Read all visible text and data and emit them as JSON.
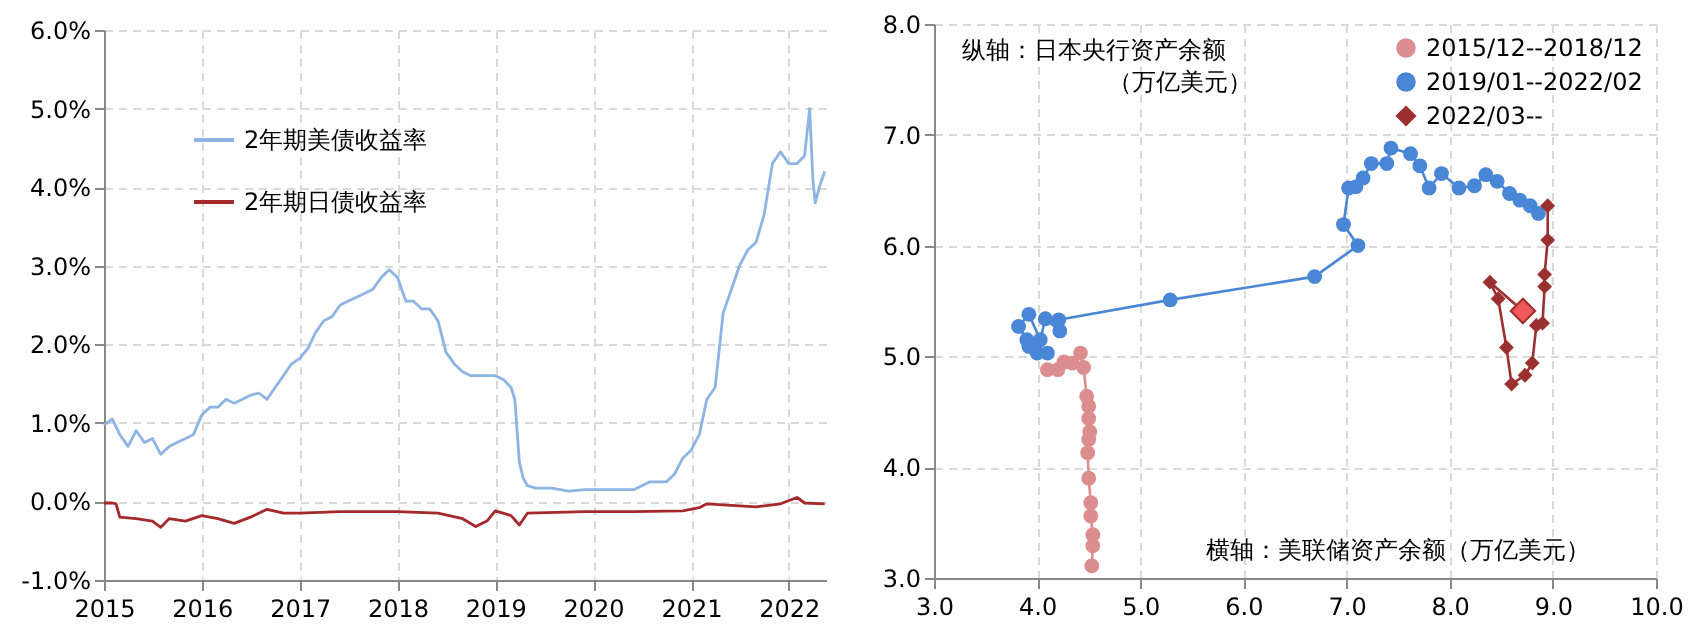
{
  "chart_data": [
    {
      "type": "line",
      "xlim": [
        "2015-01-01",
        "2022-05-20"
      ],
      "xticks": [
        "2015",
        "2016",
        "2017",
        "2018",
        "2019",
        "2020",
        "2021",
        "2022"
      ],
      "ylim": [
        -1,
        6
      ],
      "yticks": [
        {
          "value": -1,
          "label": "-1.0%"
        },
        {
          "value": 0,
          "label": "0.0%"
        },
        {
          "value": 1,
          "label": "1.0%"
        },
        {
          "value": 2,
          "label": "2.0%"
        },
        {
          "value": 3,
          "label": "3.0%"
        },
        {
          "value": 4,
          "label": "4.0%"
        },
        {
          "value": 5,
          "label": "5.0%"
        },
        {
          "value": 6,
          "label": "6.0%"
        }
      ],
      "grid": true,
      "legend": "top left",
      "series": [
        {
          "name": "2年期美债收益率",
          "color": "#8db4e2",
          "x": [
            "2015-01-01",
            "2015-02-01",
            "2015-03-01",
            "2015-04-01",
            "2015-05-01",
            "2015-06-01",
            "2015-07-01",
            "2015-08-01",
            "2015-09-01",
            "2015-10-01",
            "2015-11-01",
            "2015-12-01",
            "2016-01-01",
            "2016-02-01",
            "2016-03-01",
            "2016-04-01",
            "2016-05-01",
            "2016-06-01",
            "2016-07-01",
            "2016-08-01",
            "2016-09-01",
            "2016-10-01",
            "2016-11-01",
            "2016-12-01",
            "2017-01-01",
            "2017-02-01",
            "2017-03-01",
            "2017-04-01",
            "2017-05-01",
            "2017-06-01",
            "2017-07-01",
            "2017-08-01",
            "2017-09-01",
            "2017-10-01",
            "2017-11-01",
            "2017-12-01",
            "2018-01-01",
            "2018-02-01",
            "2018-03-01",
            "2018-04-01",
            "2018-05-01",
            "2018-06-01",
            "2018-07-01",
            "2018-08-01",
            "2018-09-01",
            "2018-10-01",
            "2018-11-01",
            "2018-12-01",
            "2019-01-01",
            "2019-02-01",
            "2019-03-01",
            "2019-03-15",
            "2019-04-01",
            "2019-04-15",
            "2019-05-01",
            "2019-06-01",
            "2019-08-01",
            "2019-10-01",
            "2019-12-01",
            "2020-02-01",
            "2020-04-01",
            "2020-06-01",
            "2020-08-01",
            "2020-10-01",
            "2020-11-01",
            "2020-12-01",
            "2021-01-01",
            "2021-02-01",
            "2021-03-01",
            "2021-04-01",
            "2021-05-01",
            "2021-06-01",
            "2021-07-01",
            "2021-08-01",
            "2021-09-01",
            "2021-10-01",
            "2021-11-01",
            "2021-12-01",
            "2022-01-01",
            "2022-02-01",
            "2022-03-01",
            "2022-03-20",
            "2022-04-01",
            "2022-04-10",
            "2022-04-25",
            "2022-05-15"
          ],
          "values": [
            0.97,
            1.05,
            0.85,
            0.7,
            0.9,
            0.75,
            0.8,
            0.6,
            0.7,
            0.75,
            0.8,
            0.85,
            1.1,
            1.2,
            1.2,
            1.3,
            1.25,
            1.3,
            1.35,
            1.38,
            1.3,
            1.45,
            1.6,
            1.75,
            1.82,
            1.95,
            2.15,
            2.3,
            2.35,
            2.5,
            2.55,
            2.6,
            2.65,
            2.7,
            2.85,
            2.95,
            2.85,
            2.55,
            2.55,
            2.45,
            2.45,
            2.3,
            1.9,
            1.75,
            1.65,
            1.6,
            1.6,
            1.6,
            1.6,
            1.55,
            1.45,
            1.3,
            0.5,
            0.3,
            0.2,
            0.17,
            0.17,
            0.13,
            0.15,
            0.15,
            0.15,
            0.15,
            0.25,
            0.25,
            0.35,
            0.55,
            0.65,
            0.85,
            1.3,
            1.45,
            2.4,
            2.7,
            3.0,
            3.2,
            3.3,
            3.65,
            4.3,
            4.45,
            4.3,
            4.3,
            4.4,
            5.0,
            4.1,
            3.8,
            4.0,
            4.2
          ]
        },
        {
          "name": "2年期日债收益率",
          "color": "#a5282a",
          "x": [
            "2015-01-01",
            "2015-02-01",
            "2015-02-15",
            "2015-03-01",
            "2015-05-01",
            "2015-07-01",
            "2015-08-01",
            "2015-09-01",
            "2015-11-01",
            "2016-01-01",
            "2016-03-01",
            "2016-05-01",
            "2016-07-01",
            "2016-09-01",
            "2016-11-01",
            "2017-01-01",
            "2017-06-01",
            "2018-01-01",
            "2018-06-01",
            "2018-09-01",
            "2018-10-20",
            "2018-12-01",
            "2019-01-01",
            "2019-03-01",
            "2019-04-01",
            "2019-05-01",
            "2019-12-01",
            "2020-06-01",
            "2020-12-01",
            "2021-02-01",
            "2021-03-01",
            "2021-06-01",
            "2021-09-01",
            "2021-12-01",
            "2022-02-01",
            "2022-03-01",
            "2022-05-15"
          ],
          "values": [
            -0.02,
            -0.02,
            -0.03,
            -0.2,
            -0.22,
            -0.25,
            -0.33,
            -0.22,
            -0.25,
            -0.18,
            -0.22,
            -0.28,
            -0.2,
            -0.1,
            -0.15,
            -0.15,
            -0.13,
            -0.13,
            -0.15,
            -0.22,
            -0.32,
            -0.25,
            -0.12,
            -0.18,
            -0.3,
            -0.15,
            -0.13,
            -0.13,
            -0.12,
            -0.08,
            -0.03,
            -0.05,
            -0.07,
            -0.03,
            0.05,
            -0.02,
            -0.03
          ]
        }
      ]
    },
    {
      "type": "line",
      "xlim": [
        3,
        10
      ],
      "xticks": [
        {
          "value": 3,
          "label": "3.0"
        },
        {
          "value": 4,
          "label": "4.0"
        },
        {
          "value": 5,
          "label": "5.0"
        },
        {
          "value": 6,
          "label": "6.0"
        },
        {
          "value": 7,
          "label": "7.0"
        },
        {
          "value": 8,
          "label": "8.0"
        },
        {
          "value": 9,
          "label": "9.0"
        },
        {
          "value": 10,
          "label": "10.0"
        }
      ],
      "ylim": [
        3,
        8
      ],
      "yticks": [
        {
          "value": 3,
          "label": "3.0"
        },
        {
          "value": 4,
          "label": "4.0"
        },
        {
          "value": 5,
          "label": "5.0"
        },
        {
          "value": 6,
          "label": "6.0"
        },
        {
          "value": 7,
          "label": "7.0"
        },
        {
          "value": 8,
          "label": "8.0"
        }
      ],
      "grid": true,
      "legend": "top right",
      "annotations": [
        "纵轴：日本央行资产余额",
        "（万亿美元）",
        "横轴：美联储资产余额（万亿美元）"
      ],
      "series": [
        {
          "name": "2015/12--2018/12",
          "color": "#dc8e8e",
          "marker": "circle",
          "x": [
            4.53,
            4.54,
            4.54,
            4.52,
            4.52,
            4.5,
            4.49,
            4.5,
            4.51,
            4.5,
            4.5,
            4.48,
            4.45,
            4.42,
            4.34,
            4.26,
            4.2,
            4.1
          ],
          "values": [
            3.11,
            3.29,
            3.39,
            3.56,
            3.68,
            3.9,
            4.13,
            4.25,
            4.32,
            4.44,
            4.55,
            4.64,
            4.9,
            5.03,
            4.94,
            4.95,
            4.88,
            4.88
          ]
        },
        {
          "name": "2019/01--2022/02",
          "color": "#4a86d6",
          "marker": "circle",
          "x": [
            4.1,
            4.0,
            3.92,
            3.9,
            3.82,
            3.92,
            4.03,
            4.08,
            4.22,
            4.21,
            5.29,
            6.69,
            7.11,
            6.97,
            7.02,
            7.09,
            7.16,
            7.24,
            7.39,
            7.43,
            7.62,
            7.71,
            7.8,
            7.92,
            8.09,
            8.24,
            8.35,
            8.46,
            8.58,
            8.68,
            8.78,
            8.86
          ],
          "values": [
            5.03,
            5.03,
            5.09,
            5.15,
            5.27,
            5.38,
            5.15,
            5.34,
            5.23,
            5.33,
            5.51,
            5.72,
            6.0,
            6.19,
            6.52,
            6.53,
            6.61,
            6.74,
            6.74,
            6.88,
            6.83,
            6.72,
            6.52,
            6.65,
            6.52,
            6.54,
            6.64,
            6.58,
            6.47,
            6.41,
            6.36,
            6.29
          ]
        },
        {
          "name": "2022/03--",
          "color": "#9b3030",
          "marker": "diamond",
          "x": [
            8.95,
            8.95,
            8.92,
            8.92,
            8.9,
            8.84,
            8.8,
            8.73,
            8.6,
            8.55,
            8.47,
            8.39,
            8.71
          ],
          "values": [
            6.36,
            6.05,
            5.74,
            5.63,
            5.3,
            5.28,
            4.94,
            4.83,
            4.75,
            5.08,
            5.52,
            5.67,
            5.41
          ]
        },
        {
          "type": "scatter",
          "color": "#f0585a",
          "marker": "diamond",
          "x": [
            8.71
          ],
          "values": [
            5.41
          ]
        }
      ]
    }
  ]
}
